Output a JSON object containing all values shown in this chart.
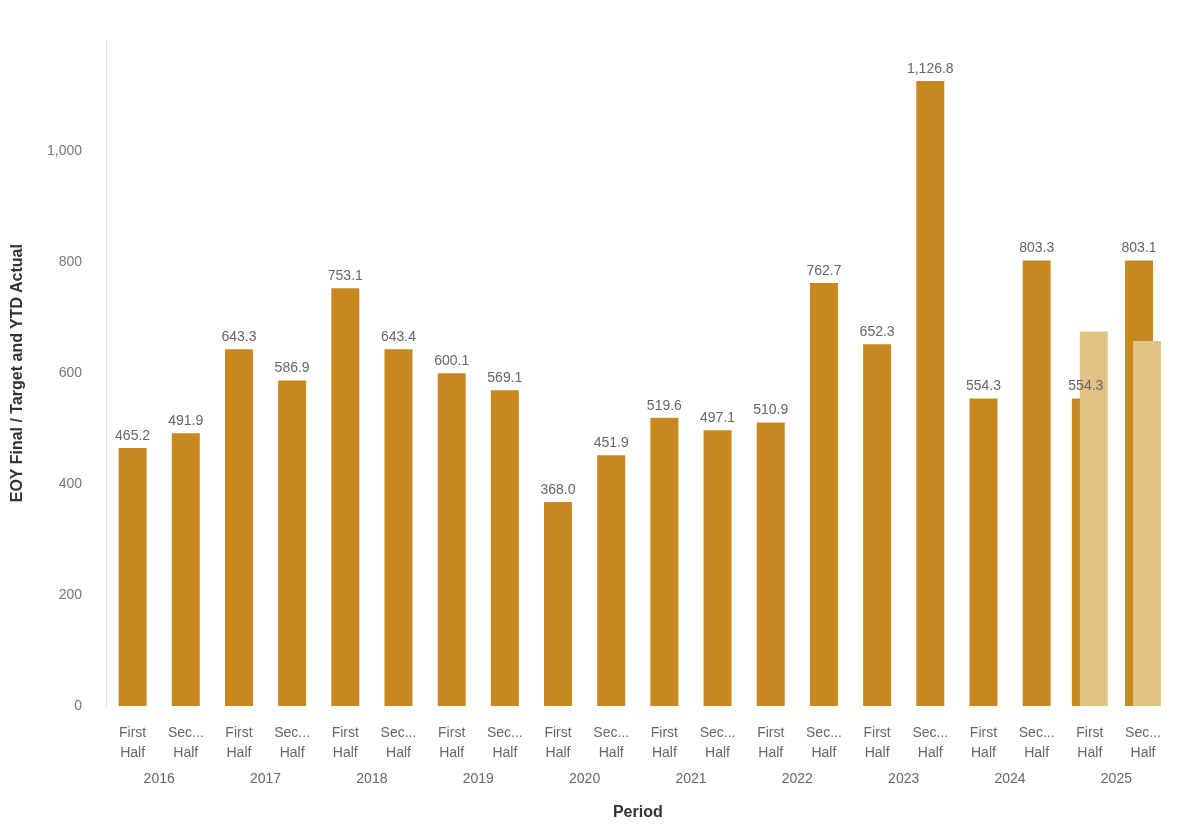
{
  "chart_data": {
    "type": "bar",
    "xlabel": "Period",
    "ylabel": "EOY Final / Target and YTD Actual",
    "categories": [
      "First Half",
      "Sec... Half",
      "First Half",
      "Sec... Half",
      "First Half",
      "Sec... Half",
      "First Half",
      "Sec... Half",
      "First Half",
      "Sec... Half",
      "First Half",
      "Sec... Half",
      "First Half",
      "Sec... Half",
      "First Half",
      "Sec... Half",
      "First Half",
      "Sec... Half",
      "First Half",
      "Sec... Half"
    ],
    "series": [
      {
        "color": "#c7881f",
        "values": [
          465.2,
          491.9,
          643.3,
          586.9,
          753.1,
          643.4,
          600.1,
          569.1,
          368.0,
          451.9,
          519.6,
          497.1,
          510.9,
          762.7,
          652.3,
          1126.8,
          554.3,
          803.3,
          554.3,
          803.1
        ],
        "value_labels": [
          "465.2",
          "491.9",
          "643.3",
          "586.9",
          "753.1",
          "643.4",
          "600.1",
          "569.1",
          "368.0",
          "451.9",
          "519.6",
          "497.1",
          "510.9",
          "762.7",
          "652.3",
          "1,126.8",
          "554.3",
          "803.3",
          "554.3",
          "803.1"
        ]
      },
      {
        "color": "#e2c283",
        "values": [
          null,
          null,
          null,
          null,
          null,
          null,
          null,
          null,
          null,
          null,
          null,
          null,
          null,
          null,
          null,
          null,
          null,
          null,
          675,
          658
        ]
      }
    ],
    "ylim": [
      0,
      1200
    ],
    "yticks": [
      0,
      200,
      400,
      600,
      800,
      {
        "value": 1000,
        "label": "1,000"
      }
    ],
    "grid": false,
    "legend": false,
    "annotations": [
      "2016",
      "2017",
      "2018",
      "2019",
      "2020",
      "2021",
      "2022",
      "2023",
      "2024",
      "2025"
    ]
  }
}
